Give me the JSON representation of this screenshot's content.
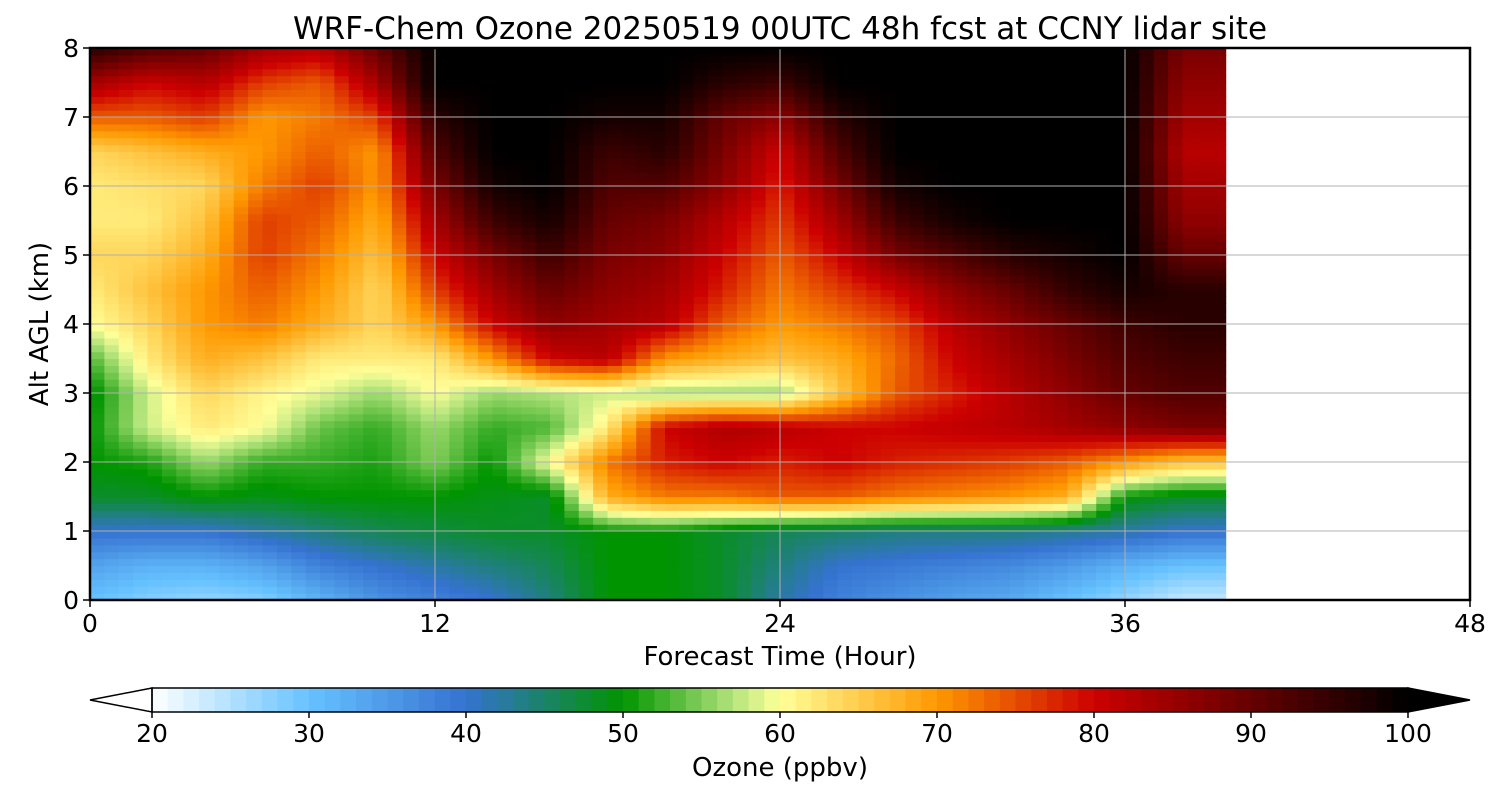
{
  "chart_data": {
    "type": "heatmap",
    "title": "WRF-Chem Ozone  20250519 00UTC 48h fcst at CCNY lidar site",
    "xlabel": "Forecast Time (Hour)",
    "ylabel": "Alt AGL (km)",
    "xlim": [
      0,
      48
    ],
    "ylim": [
      0,
      8
    ],
    "xticks": [
      0,
      12,
      24,
      36,
      48
    ],
    "yticks": [
      0,
      1,
      2,
      3,
      4,
      5,
      6,
      7,
      8
    ],
    "grid": true,
    "data_end_hour": 39.5,
    "z_altitudes_km": [
      0,
      0.5,
      1,
      1.5,
      2,
      2.5,
      3,
      3.5,
      4,
      4.5,
      5,
      5.5,
      6,
      6.5,
      7,
      7.5,
      8
    ],
    "z_hours": [
      0,
      2,
      4,
      6,
      8,
      10,
      12,
      14,
      16,
      18,
      20,
      22,
      24,
      26,
      28,
      30,
      32,
      34,
      36,
      38
    ],
    "z": [
      [
        30,
        28,
        27,
        28,
        32,
        36,
        38,
        40,
        44,
        50,
        50,
        48,
        42,
        38,
        36,
        34,
        33,
        30,
        27,
        24
      ],
      [
        34,
        32,
        32,
        34,
        38,
        40,
        42,
        44,
        46,
        50,
        50,
        48,
        44,
        40,
        39,
        38,
        37,
        35,
        32,
        30
      ],
      [
        40,
        40,
        40,
        42,
        44,
        46,
        47,
        48,
        48,
        50,
        50,
        48,
        46,
        45,
        44,
        44,
        44,
        43,
        42,
        40
      ],
      [
        48,
        48,
        50,
        49,
        50,
        50,
        50,
        49,
        48,
        68,
        72,
        72,
        74,
        74,
        72,
        71,
        70,
        68,
        50,
        48
      ],
      [
        50,
        51,
        56,
        52,
        52,
        51,
        55,
        50,
        60,
        72,
        78,
        80,
        78,
        80,
        78,
        77,
        76,
        74,
        70,
        66
      ],
      [
        50,
        58,
        62,
        60,
        54,
        52,
        56,
        52,
        53,
        62,
        80,
        83,
        82,
        80,
        80,
        81,
        82,
        84,
        86,
        88
      ],
      [
        49,
        58,
        64,
        61,
        59,
        56,
        60,
        56,
        57,
        58,
        56,
        56,
        56,
        65,
        74,
        78,
        82,
        86,
        90,
        92
      ],
      [
        53,
        62,
        68,
        66,
        62,
        62,
        62,
        70,
        80,
        82,
        70,
        68,
        66,
        68,
        73,
        80,
        84,
        88,
        92,
        94
      ],
      [
        60,
        64,
        70,
        72,
        68,
        64,
        70,
        80,
        86,
        84,
        82,
        74,
        70,
        72,
        75,
        82,
        86,
        90,
        94,
        96
      ],
      [
        62,
        66,
        70,
        74,
        70,
        64,
        76,
        84,
        90,
        86,
        84,
        78,
        72,
        76,
        80,
        86,
        90,
        95,
        98,
        96
      ],
      [
        64,
        64,
        68,
        76,
        72,
        66,
        80,
        88,
        94,
        88,
        86,
        80,
        74,
        80,
        88,
        92,
        96,
        98,
        100,
        90
      ],
      [
        62,
        62,
        66,
        76,
        74,
        68,
        84,
        94,
        98,
        90,
        88,
        82,
        76,
        84,
        94,
        98,
        100,
        100,
        100,
        86
      ],
      [
        62,
        63,
        64,
        72,
        76,
        70,
        88,
        98,
        100,
        92,
        92,
        86,
        78,
        88,
        98,
        100,
        100,
        100,
        100,
        84
      ],
      [
        64,
        66,
        68,
        70,
        74,
        70,
        92,
        100,
        100,
        94,
        96,
        88,
        80,
        92,
        100,
        100,
        100,
        100,
        100,
        82
      ],
      [
        74,
        74,
        76,
        70,
        72,
        76,
        96,
        100,
        100,
        98,
        98,
        90,
        86,
        96,
        100,
        100,
        100,
        100,
        100,
        84
      ],
      [
        84,
        80,
        82,
        76,
        74,
        84,
        100,
        100,
        100,
        100,
        100,
        96,
        94,
        100,
        100,
        100,
        100,
        100,
        100,
        86
      ],
      [
        96,
        92,
        90,
        84,
        82,
        90,
        100,
        100,
        100,
        100,
        100,
        100,
        100,
        100,
        100,
        100,
        100,
        100,
        100,
        88
      ]
    ],
    "colorbar": {
      "label": "Ozone  (ppbv)",
      "range": [
        20,
        100
      ],
      "extend": "both",
      "ticks": [
        20,
        30,
        40,
        50,
        60,
        70,
        80,
        90,
        100
      ],
      "colors": [
        {
          "v": 20,
          "c": "#ffffff"
        },
        {
          "v": 30,
          "c": "#66c2ff"
        },
        {
          "v": 40,
          "c": "#3572d0"
        },
        {
          "v": 50,
          "c": "#009400"
        },
        {
          "v": 57,
          "c": "#b4e47c"
        },
        {
          "v": 60,
          "c": "#ffff99"
        },
        {
          "v": 70,
          "c": "#ff9900"
        },
        {
          "v": 80,
          "c": "#cc0000"
        },
        {
          "v": 90,
          "c": "#660000"
        },
        {
          "v": 100,
          "c": "#000000"
        }
      ]
    }
  }
}
